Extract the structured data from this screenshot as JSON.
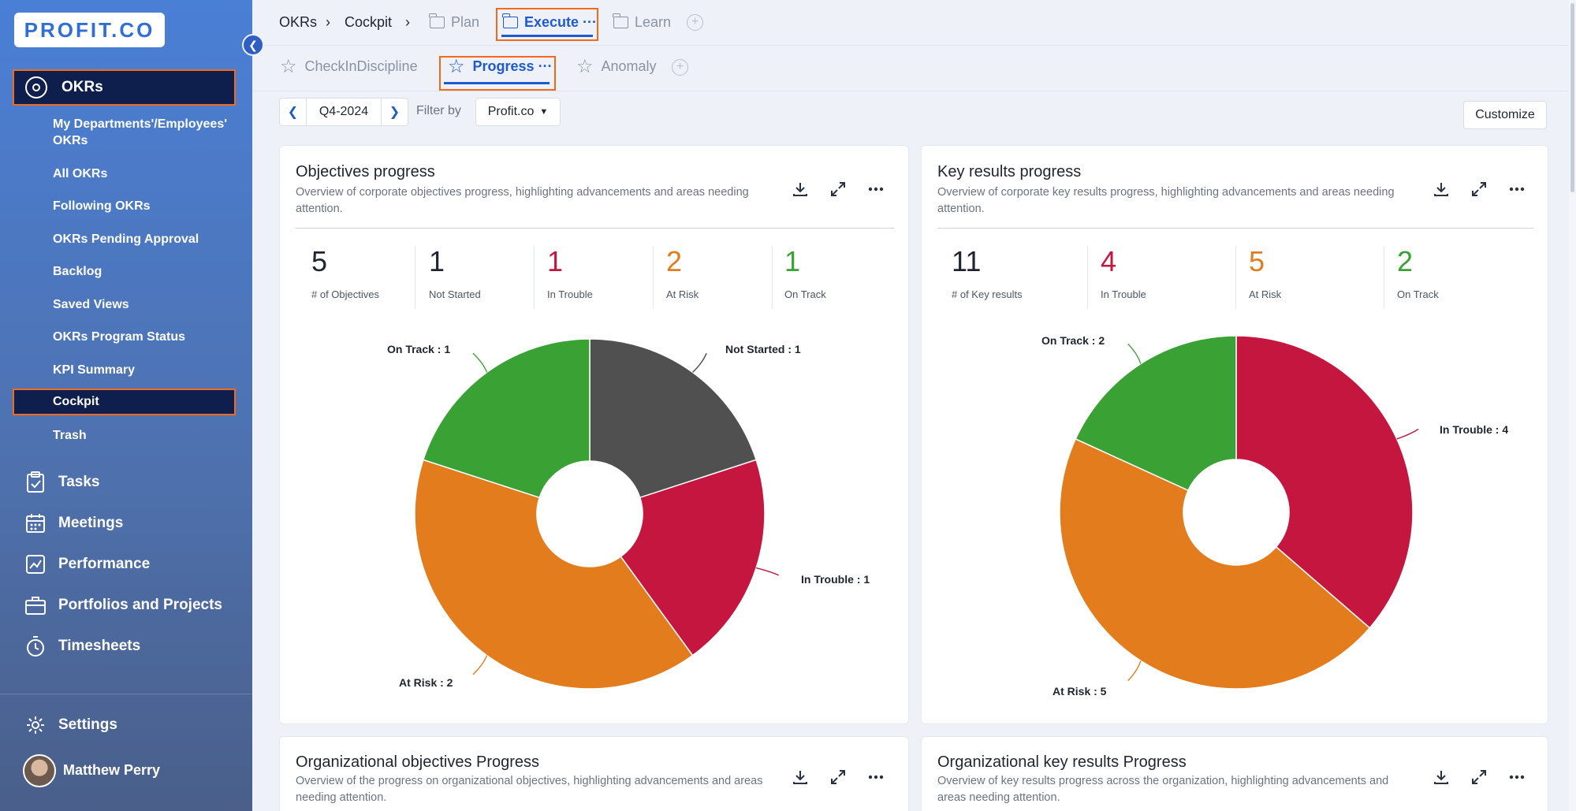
{
  "sidebar": {
    "logo": "PROFIT.CO",
    "okrs_label": "OKRs",
    "okr_items": [
      "My Departments'/Employees' OKRs",
      "All OKRs",
      "Following OKRs",
      "OKRs Pending Approval",
      "Backlog",
      "Saved Views",
      "OKRs Program Status",
      "KPI Summary",
      "Cockpit",
      "Trash"
    ],
    "main_items": [
      "Tasks",
      "Meetings",
      "Performance",
      "Portfolios and Projects",
      "Timesheets"
    ],
    "settings": "Settings",
    "user": "Matthew Perry"
  },
  "breadcrumb": {
    "root": "OKRs",
    "sep": "›",
    "current": "Cockpit"
  },
  "top_tabs": {
    "plan": "Plan",
    "execute": "Execute",
    "learn": "Learn",
    "more": "···"
  },
  "sub_tabs": {
    "checkin": "CheckInDiscipline",
    "progress": "Progress",
    "anomaly": "Anomaly",
    "more": "···"
  },
  "filter": {
    "quarter": "Q4-2024",
    "filter_by": "Filter by",
    "org": "Profit.co",
    "customize": "Customize"
  },
  "colors": {
    "not_started": "#505050",
    "in_trouble": "#c4163f",
    "at_risk": "#e37c1c",
    "on_track": "#3aa235",
    "accent": "#1f5ad1"
  },
  "cards": {
    "objectives": {
      "title": "Objectives progress",
      "desc": "Overview of corporate objectives progress, highlighting advancements and areas needing attention.",
      "stats": [
        {
          "value": "5",
          "label": "# of Objectives"
        },
        {
          "value": "1",
          "label": "Not Started"
        },
        {
          "value": "1",
          "label": "In Trouble"
        },
        {
          "value": "2",
          "label": "At Risk"
        },
        {
          "value": "1",
          "label": "On Track"
        }
      ],
      "labels": {
        "on_track": "On Track : 1",
        "not_started": "Not Started : 1",
        "in_trouble": "In Trouble : 1",
        "at_risk": "At Risk : 2"
      }
    },
    "key_results": {
      "title": "Key results progress",
      "desc": "Overview of corporate key results progress, highlighting advancements and areas needing attention.",
      "stats": [
        {
          "value": "11",
          "label": "# of Key results"
        },
        {
          "value": "4",
          "label": "In Trouble"
        },
        {
          "value": "5",
          "label": "At Risk"
        },
        {
          "value": "2",
          "label": "On Track"
        }
      ],
      "labels": {
        "on_track": "On Track : 2",
        "in_trouble": "In Trouble : 4",
        "at_risk": "At Risk : 5"
      }
    },
    "org_objectives": {
      "title": "Organizational objectives Progress",
      "desc": "Overview of the progress on organizational objectives, highlighting advancements and areas needing attention."
    },
    "org_key_results": {
      "title": "Organizational key results Progress",
      "desc": "Overview of key results progress across the organization, highlighting advancements and areas needing attention."
    }
  },
  "chart_data": [
    {
      "type": "pie",
      "title": "Objectives progress",
      "categories": [
        "Not Started",
        "In Trouble",
        "At Risk",
        "On Track"
      ],
      "values": [
        1,
        1,
        2,
        1
      ],
      "colors": [
        "#505050",
        "#c4163f",
        "#e37c1c",
        "#3aa235"
      ]
    },
    {
      "type": "pie",
      "title": "Key results progress",
      "categories": [
        "In Trouble",
        "At Risk",
        "On Track"
      ],
      "values": [
        4,
        5,
        2
      ],
      "colors": [
        "#c4163f",
        "#e37c1c",
        "#3aa235"
      ]
    }
  ]
}
